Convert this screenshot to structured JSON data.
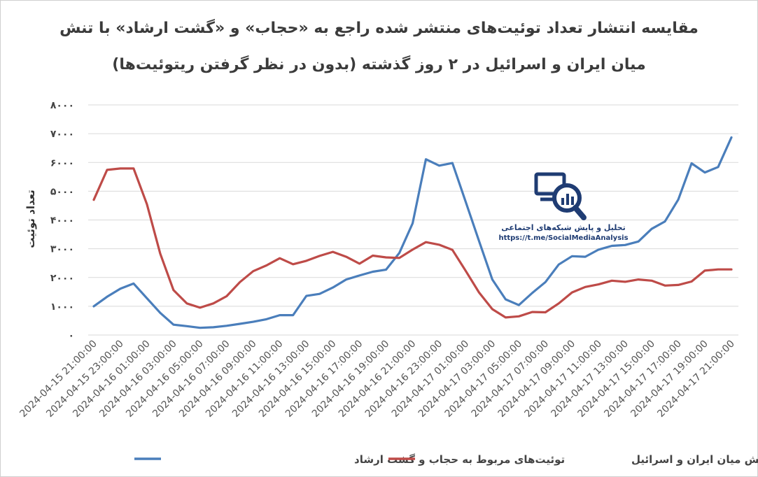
{
  "chart_data": {
    "type": "line",
    "title_line1": "مقایسه انتشار تعداد توئیت‌های منتشر شده راجع به «حجاب» و «گشت ارشاد» با تنش",
    "title_line2": "میان ایران و اسرائیل در ۲ روز گذشته (بدون در نظر گرفتن ریتوئیت‌ها)",
    "ylabel": "تعداد توئیت",
    "ylim": [
      0,
      8000
    ],
    "yticks": [
      0,
      1000,
      2000,
      3000,
      4000,
      5000,
      6000,
      7000,
      8000
    ],
    "ytick_labels": [
      "۰",
      "۱۰۰۰",
      "۲۰۰۰",
      "۳۰۰۰",
      "۴۰۰۰",
      "۵۰۰۰",
      "۶۰۰۰",
      "۷۰۰۰",
      "۸۰۰۰"
    ],
    "x": [
      "2024-04-15 21:00:00",
      "2024-04-15 22:00:00",
      "2024-04-15 23:00:00",
      "2024-04-16 00:00:00",
      "2024-04-16 01:00:00",
      "2024-04-16 02:00:00",
      "2024-04-16 03:00:00",
      "2024-04-16 04:00:00",
      "2024-04-16 05:00:00",
      "2024-04-16 06:00:00",
      "2024-04-16 07:00:00",
      "2024-04-16 08:00:00",
      "2024-04-16 09:00:00",
      "2024-04-16 10:00:00",
      "2024-04-16 11:00:00",
      "2024-04-16 12:00:00",
      "2024-04-16 13:00:00",
      "2024-04-16 14:00:00",
      "2024-04-16 15:00:00",
      "2024-04-16 16:00:00",
      "2024-04-16 17:00:00",
      "2024-04-16 18:00:00",
      "2024-04-16 19:00:00",
      "2024-04-16 20:00:00",
      "2024-04-16 21:00:00",
      "2024-04-16 22:00:00",
      "2024-04-16 23:00:00",
      "2024-04-17 00:00:00",
      "2024-04-17 01:00:00",
      "2024-04-17 02:00:00",
      "2024-04-17 03:00:00",
      "2024-04-17 04:00:00",
      "2024-04-17 05:00:00",
      "2024-04-17 06:00:00",
      "2024-04-17 07:00:00",
      "2024-04-17 08:00:00",
      "2024-04-17 09:00:00",
      "2024-04-17 10:00:00",
      "2024-04-17 11:00:00",
      "2024-04-17 12:00:00",
      "2024-04-17 13:00:00",
      "2024-04-17 14:00:00",
      "2024-04-17 15:00:00",
      "2024-04-17 16:00:00",
      "2024-04-17 17:00:00",
      "2024-04-17 18:00:00",
      "2024-04-17 19:00:00",
      "2024-04-17 20:00:00",
      "2024-04-17 21:00:00"
    ],
    "x_tick_labels": [
      "2024-04-15 21:00:00",
      "2024-04-15 23:00:00",
      "2024-04-16 01:00:00",
      "2024-04-16 03:00:00",
      "2024-04-16 05:00:00",
      "2024-04-16 07:00:00",
      "2024-04-16 09:00:00",
      "2024-04-16 11:00:00",
      "2024-04-16 13:00:00",
      "2024-04-16 15:00:00",
      "2024-04-16 17:00:00",
      "2024-04-16 19:00:00",
      "2024-04-16 21:00:00",
      "2024-04-16 23:00:00",
      "2024-04-17 01:00:00",
      "2024-04-17 03:00:00",
      "2024-04-17 05:00:00",
      "2024-04-17 07:00:00",
      "2024-04-17 09:00:00",
      "2024-04-17 11:00:00",
      "2024-04-17 13:00:00",
      "2024-04-17 15:00:00",
      "2024-04-17 17:00:00",
      "2024-04-17 19:00:00",
      "2024-04-17 21:00:00"
    ],
    "series": [
      {
        "name": "توئیت‌های مربوط به حجاب و گشت ارشاد",
        "color": "#4a7ebb",
        "values": [
          1000,
          1330,
          1610,
          1790,
          1280,
          770,
          360,
          310,
          250,
          270,
          320,
          390,
          460,
          550,
          690,
          690,
          1360,
          1430,
          1650,
          1930,
          2070,
          2200,
          2270,
          2850,
          3880,
          6110,
          5890,
          5980,
          4630,
          3270,
          1930,
          1240,
          1040,
          1460,
          1840,
          2450,
          2740,
          2720,
          2970,
          3100,
          3130,
          3250,
          3690,
          3950,
          4710,
          5970,
          5650,
          5840,
          6870
        ]
      },
      {
        "name": "توئیت‌های مربوط به تنش میان ایران و اسرائیل",
        "color": "#be4b48",
        "values": [
          4700,
          5740,
          5790,
          5790,
          4550,
          2830,
          1560,
          1100,
          950,
          1100,
          1350,
          1840,
          2220,
          2420,
          2670,
          2460,
          2580,
          2750,
          2890,
          2720,
          2480,
          2760,
          2700,
          2680,
          2970,
          3230,
          3140,
          2960,
          2230,
          1480,
          900,
          610,
          650,
          800,
          790,
          1100,
          1480,
          1670,
          1760,
          1890,
          1850,
          1930,
          1890,
          1720,
          1740,
          1860,
          2240,
          2280,
          2280
        ]
      }
    ],
    "grid": true,
    "legend_position": "bottom"
  },
  "logo": {
    "name": "تحلیل و پایش شبکه‌های اجتماعی",
    "url": "https://t.me/SocialMediaAnalysis"
  }
}
